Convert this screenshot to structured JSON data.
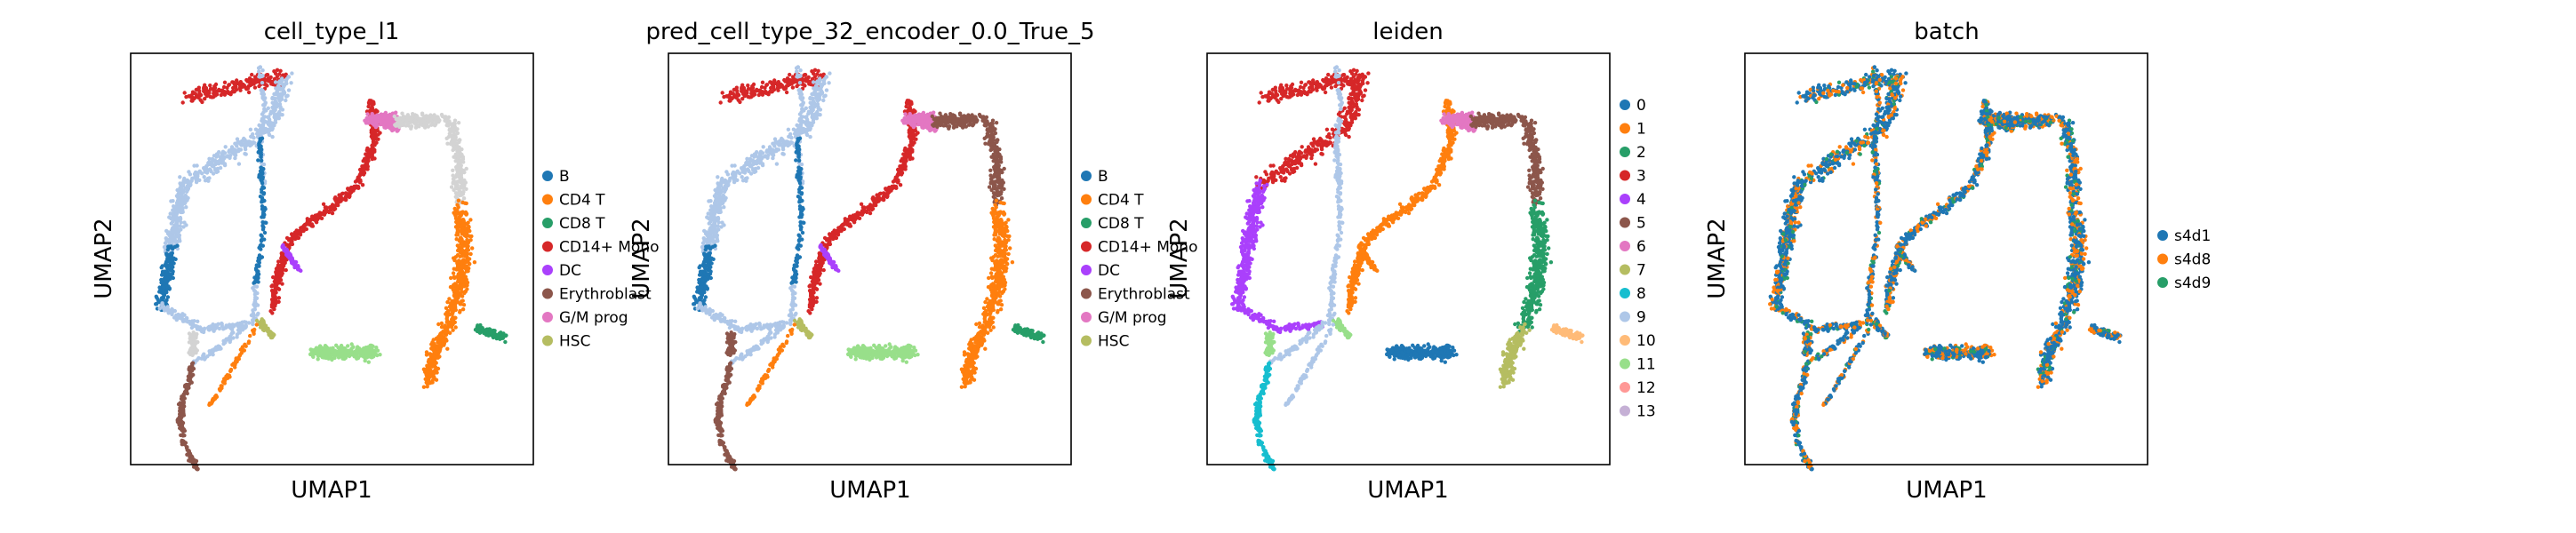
{
  "colors": {
    "tab20": [
      "#1f77b4",
      "#ff7f0e",
      "#279e68",
      "#d62728",
      "#aa40fc",
      "#8c564b",
      "#e377c2",
      "#b5bd61",
      "#17becf",
      "#aec7e8",
      "#ffbb78",
      "#98df8a",
      "#ff9896",
      "#c5b0d5"
    ],
    "unassigned": "#d3d3d3"
  },
  "chart_data": [
    {
      "type": "scatter",
      "title": "cell_type_l1",
      "xlabel": "UMAP1",
      "ylabel": "UMAP2",
      "legend": [
        "B",
        "CD4 T",
        "CD8 T",
        "CD14+ Mono",
        "DC",
        "Erythroblast",
        "G/M prog",
        "HSC"
      ],
      "legend_placement": "right",
      "grid": false
    },
    {
      "type": "scatter",
      "title": "pred_cell_type_32_encoder_0.0_True_5",
      "xlabel": "UMAP1",
      "ylabel": "UMAP2",
      "legend": [
        "B",
        "CD4 T",
        "CD8 T",
        "CD14+ Mono",
        "DC",
        "Erythroblast",
        "G/M prog",
        "HSC"
      ],
      "legend_placement": "right",
      "grid": false
    },
    {
      "type": "scatter",
      "title": "leiden",
      "xlabel": "UMAP1",
      "ylabel": "UMAP2",
      "legend": [
        "0",
        "1",
        "2",
        "3",
        "4",
        "5",
        "6",
        "7",
        "8",
        "9",
        "10",
        "11",
        "12",
        "13"
      ],
      "legend_placement": "right",
      "grid": false
    },
    {
      "type": "scatter",
      "title": "batch",
      "xlabel": "UMAP1",
      "ylabel": "UMAP2",
      "legend": [
        "s4d1",
        "s4d8",
        "s4d9"
      ],
      "legend_placement": "right",
      "grid": false
    }
  ]
}
